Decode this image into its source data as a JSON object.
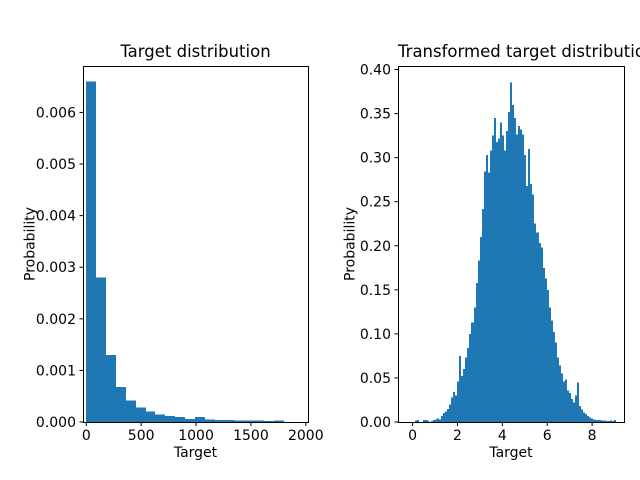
{
  "figure": {
    "background": "#ffffff",
    "bar_color": "#1f77b4",
    "axis_color": "#000000",
    "text_color": "#000000"
  },
  "chart_data": [
    {
      "type": "bar",
      "subtype": "histogram",
      "title": "Target distribution",
      "xlabel": "Target",
      "ylabel": "Probability",
      "grid": false,
      "legend": null,
      "bin_start": 0,
      "bin_width": 90,
      "values": [
        0.0066,
        0.0028,
        0.0013,
        0.00068,
        0.00042,
        0.00028,
        0.0002,
        0.00015,
        0.00012,
        0.0001,
        6e-05,
        0.0001,
        5e-05,
        4e-05,
        4e-05,
        3e-05,
        3e-05,
        3e-05,
        2e-05,
        3e-05
      ],
      "xlim": [
        -30,
        2020
      ],
      "ylim": [
        0,
        0.0069
      ],
      "xticks": [
        0,
        500,
        1000,
        1500,
        2000
      ],
      "xtick_labels": [
        "0",
        "500",
        "1000",
        "1500",
        "2000"
      ],
      "yticks": [
        0,
        0.001,
        0.002,
        0.003,
        0.004,
        0.005,
        0.006
      ],
      "ytick_labels": [
        "0.000",
        "0.001",
        "0.002",
        "0.003",
        "0.004",
        "0.005",
        "0.006"
      ]
    },
    {
      "type": "bar",
      "subtype": "histogram",
      "title": "Transformed target distribution",
      "xlabel": "Target",
      "ylabel": "Probability",
      "grid": false,
      "legend": null,
      "bin_start": 0,
      "bin_width": 0.0905,
      "values": [
        0,
        0.0015,
        0.002,
        0,
        0,
        0.002,
        0.0025,
        0.0015,
        0,
        0.001,
        0.002,
        0.003,
        0.004,
        0.003,
        0.007,
        0.01,
        0.012,
        0.015,
        0.02,
        0.028,
        0.034,
        0.03,
        0.046,
        0.075,
        0.052,
        0.06,
        0.073,
        0.084,
        0.1,
        0.113,
        0.13,
        0.158,
        0.183,
        0.21,
        0.242,
        0.284,
        0.303,
        0.283,
        0.308,
        0.325,
        0.345,
        0.318,
        0.322,
        0.34,
        0.325,
        0.308,
        0.33,
        0.352,
        0.385,
        0.36,
        0.345,
        0.326,
        0.336,
        0.332,
        0.326,
        0.303,
        0.268,
        0.31,
        0.27,
        0.258,
        0.225,
        0.215,
        0.203,
        0.198,
        0.175,
        0.163,
        0.15,
        0.13,
        0.115,
        0.102,
        0.09,
        0.073,
        0.064,
        0.055,
        0.046,
        0.048,
        0.036,
        0.033,
        0.026,
        0.022,
        0.03,
        0.045,
        0.018,
        0.014,
        0.011,
        0.009,
        0.007,
        0.005,
        0.004,
        0.003,
        0.0025,
        0.002,
        0.002,
        0.0015,
        0.0015,
        0.001,
        0.001,
        0.0015,
        0.001,
        0.002
      ],
      "xlim": [
        -0.65,
        9.42
      ],
      "ylim": [
        0,
        0.404
      ],
      "xticks": [
        0,
        2,
        4,
        6,
        8
      ],
      "xtick_labels": [
        "0",
        "2",
        "4",
        "6",
        "8"
      ],
      "yticks": [
        0,
        0.05,
        0.1,
        0.15,
        0.2,
        0.25,
        0.3,
        0.35,
        0.4
      ],
      "ytick_labels": [
        "0.00",
        "0.05",
        "0.10",
        "0.15",
        "0.20",
        "0.25",
        "0.30",
        "0.35",
        "0.40"
      ]
    }
  ]
}
